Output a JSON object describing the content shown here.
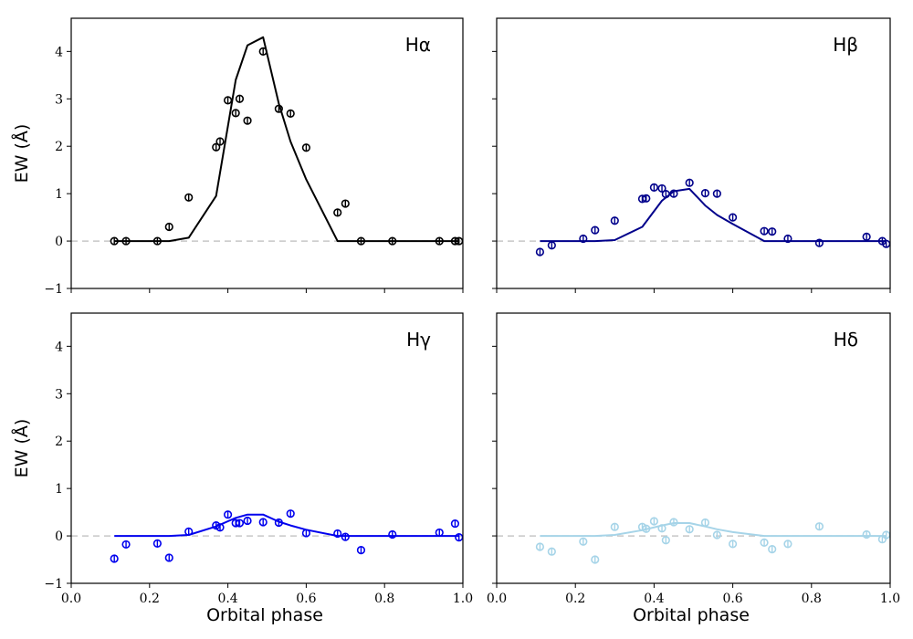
{
  "chart_data": {
    "type": "line+scatter",
    "xlabel": "Orbital phase",
    "ylabel": "EW (Å)",
    "xlim": [
      0.0,
      1.0
    ],
    "ylim": [
      -1,
      4.7
    ],
    "xticks": [
      0.0,
      0.2,
      0.4,
      0.6,
      0.8,
      1.0
    ],
    "xtick_labels": [
      "0.0",
      "0.2",
      "0.4",
      "0.6",
      "0.8",
      "1.0"
    ],
    "yticks": [
      -1,
      0,
      1,
      2,
      3,
      4
    ],
    "ytick_labels": [
      "−1",
      "0",
      "1",
      "2",
      "3",
      "4"
    ],
    "panels": [
      {
        "label": "Hα",
        "color": "#000000",
        "model": {
          "x": [
            0.11,
            0.25,
            0.3,
            0.37,
            0.42,
            0.45,
            0.49,
            0.53,
            0.56,
            0.6,
            0.68,
            0.99
          ],
          "y": [
            0,
            0,
            0.07,
            0.95,
            3.4,
            4.13,
            4.3,
            2.9,
            2.1,
            1.3,
            0,
            0
          ]
        },
        "observations": {
          "x": [
            0.11,
            0.14,
            0.22,
            0.25,
            0.3,
            0.37,
            0.38,
            0.4,
            0.42,
            0.43,
            0.45,
            0.49,
            0.53,
            0.56,
            0.6,
            0.68,
            0.7,
            0.74,
            0.82,
            0.94,
            0.98,
            0.99
          ],
          "y": [
            0,
            0,
            0,
            0.3,
            0.92,
            1.98,
            2.1,
            2.97,
            2.7,
            3.0,
            2.54,
            4.0,
            2.79,
            2.69,
            1.97,
            0.6,
            0.79,
            0,
            0,
            0,
            0,
            0
          ]
        }
      },
      {
        "label": "Hβ",
        "color": "#00008b",
        "model": {
          "x": [
            0.11,
            0.25,
            0.3,
            0.37,
            0.42,
            0.45,
            0.49,
            0.53,
            0.56,
            0.6,
            0.68,
            0.99
          ],
          "y": [
            0,
            0,
            0.02,
            0.3,
            0.85,
            1.05,
            1.1,
            0.75,
            0.55,
            0.36,
            0,
            0
          ]
        },
        "observations": {
          "x": [
            0.11,
            0.14,
            0.22,
            0.25,
            0.3,
            0.37,
            0.38,
            0.4,
            0.42,
            0.43,
            0.45,
            0.49,
            0.53,
            0.56,
            0.6,
            0.68,
            0.7,
            0.74,
            0.82,
            0.94,
            0.98,
            0.99
          ],
          "y": [
            -0.23,
            -0.09,
            0.05,
            0.23,
            0.43,
            0.89,
            0.9,
            1.13,
            1.11,
            0.99,
            1.0,
            1.23,
            1.01,
            1.0,
            0.5,
            0.21,
            0.2,
            0.05,
            -0.04,
            0.09,
            0.0,
            -0.06
          ]
        }
      },
      {
        "label": "Hγ",
        "color": "#0000ee",
        "model": {
          "x": [
            0.11,
            0.25,
            0.3,
            0.37,
            0.42,
            0.45,
            0.49,
            0.53,
            0.56,
            0.6,
            0.68,
            0.99
          ],
          "y": [
            0,
            0,
            0.02,
            0.2,
            0.38,
            0.45,
            0.45,
            0.3,
            0.22,
            0.13,
            0,
            0
          ]
        },
        "observations": {
          "x": [
            0.11,
            0.14,
            0.22,
            0.25,
            0.3,
            0.37,
            0.38,
            0.4,
            0.42,
            0.43,
            0.45,
            0.49,
            0.53,
            0.56,
            0.6,
            0.68,
            0.7,
            0.74,
            0.82,
            0.94,
            0.98,
            0.99
          ],
          "y": [
            -0.48,
            -0.18,
            -0.16,
            -0.46,
            0.09,
            0.22,
            0.18,
            0.45,
            0.27,
            0.27,
            0.32,
            0.29,
            0.28,
            0.47,
            0.06,
            0.05,
            -0.02,
            -0.3,
            0.03,
            0.07,
            0.26,
            -0.03
          ]
        }
      },
      {
        "label": "Hδ",
        "color": "#a6d4e8",
        "model": {
          "x": [
            0.11,
            0.25,
            0.3,
            0.37,
            0.42,
            0.45,
            0.49,
            0.53,
            0.56,
            0.6,
            0.68,
            0.99
          ],
          "y": [
            0,
            0,
            0.02,
            0.12,
            0.22,
            0.27,
            0.27,
            0.2,
            0.14,
            0.08,
            0,
            0
          ]
        },
        "observations": {
          "x": [
            0.11,
            0.14,
            0.22,
            0.25,
            0.3,
            0.37,
            0.38,
            0.4,
            0.42,
            0.43,
            0.45,
            0.49,
            0.53,
            0.56,
            0.6,
            0.68,
            0.7,
            0.74,
            0.82,
            0.94,
            0.98,
            0.99
          ],
          "y": [
            -0.23,
            -0.33,
            -0.12,
            -0.5,
            0.19,
            0.19,
            0.15,
            0.31,
            0.16,
            -0.09,
            0.29,
            0.14,
            0.28,
            0.02,
            -0.17,
            -0.14,
            -0.28,
            -0.17,
            0.2,
            0.03,
            -0.07,
            0.02
          ]
        }
      }
    ]
  }
}
